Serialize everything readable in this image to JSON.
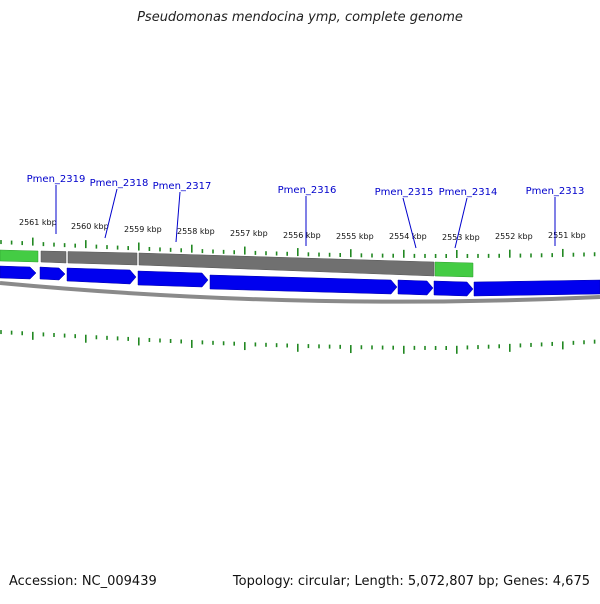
{
  "title": "Pseudomonas mendocina ymp, complete genome",
  "accession_label": "Accession: NC_009439",
  "summary_label": "Topology: circular; Length: 5,072,807 bp; Genes: 4,675",
  "colors": {
    "cds": "#0000ee",
    "cds_dark": "#0000aa",
    "segment_green": "#44cc44",
    "segment_gray": "#707070",
    "backbone": "#8a8a8a",
    "tick": "#228822",
    "gene_label": "#0000cc"
  },
  "position_labels": [
    "2561 kbp",
    "2560 kbp",
    "2559 kbp",
    "2558 kbp",
    "2557 kbp",
    "2556 kbp",
    "2555 kbp",
    "2554 kbp",
    "2553 kbp",
    "2552 kbp",
    "2551 kbp"
  ],
  "genes": [
    {
      "name": "Pmen_2319"
    },
    {
      "name": "Pmen_2318"
    },
    {
      "name": "Pmen_2317"
    },
    {
      "name": "Pmen_2316"
    },
    {
      "name": "Pmen_2315"
    },
    {
      "name": "Pmen_2314"
    },
    {
      "name": "Pmen_2313"
    }
  ]
}
